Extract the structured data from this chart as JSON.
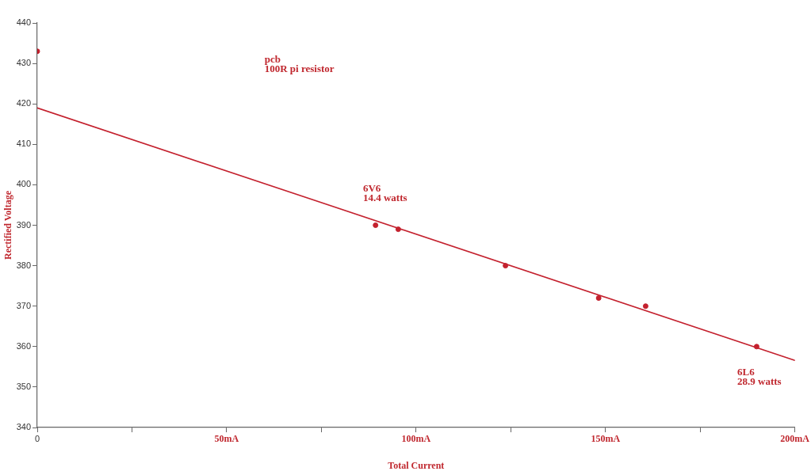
{
  "chart_data": {
    "type": "scatter",
    "xlabel": "Total Current",
    "ylabel": "Rectified Voltage",
    "xlim": [
      0,
      200
    ],
    "ylim": [
      340,
      440
    ],
    "xticks": [
      {
        "value": 0,
        "label": "0"
      },
      {
        "value": 25,
        "label": null
      },
      {
        "value": 50,
        "label": "50mA"
      },
      {
        "value": 75,
        "label": null
      },
      {
        "value": 100,
        "label": "100mA"
      },
      {
        "value": 125,
        "label": null
      },
      {
        "value": 150,
        "label": "150mA"
      },
      {
        "value": 175,
        "label": null
      },
      {
        "value": 200,
        "label": "200mA"
      }
    ],
    "yticks": [
      340,
      350,
      360,
      370,
      380,
      390,
      400,
      410,
      420,
      430,
      440
    ],
    "grid": false,
    "legend": false,
    "series": [
      {
        "type": "scatter",
        "marker": "circle",
        "color": "#c4212e",
        "x": [
          0,
          89.3,
          95.3,
          123.6,
          148.2,
          160.6,
          189.9
        ],
        "values": [
          433,
          390,
          389,
          380,
          372,
          370,
          360
        ]
      },
      {
        "type": "line",
        "marker": "none",
        "line_style": "solid",
        "color": "#c4212e",
        "x": [
          0,
          200
        ],
        "values": [
          419,
          356.6
        ]
      }
    ],
    "annotations": [
      "pcb\n100R pi resistor",
      "6V6\n14.4 watts",
      "6L6\n28.9 watts"
    ]
  }
}
